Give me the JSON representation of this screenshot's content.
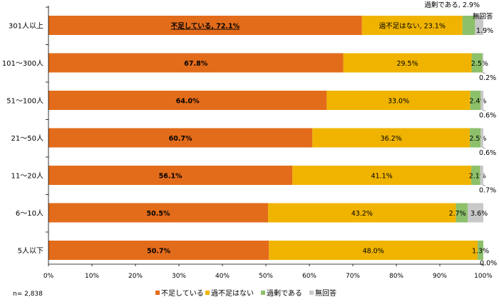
{
  "chart_data": {
    "type": "bar",
    "orientation": "horizontal",
    "stacked": true,
    "percent": true,
    "categories": [
      "301人以上",
      "101～300人",
      "51～100人",
      "21～50人",
      "11～20人",
      "6～10人",
      "5人以下"
    ],
    "series": [
      {
        "name": "不足している",
        "color": "#E36C1B",
        "values": [
          72.1,
          67.8,
          64.0,
          60.7,
          56.1,
          50.5,
          50.7
        ],
        "labels": [
          "不足している, 72.1%",
          "67.8%",
          "64.0%",
          "60.7%",
          "56.1%",
          "50.5%",
          "50.7%"
        ]
      },
      {
        "name": "過不足はない",
        "color": "#F0B400",
        "values": [
          23.1,
          29.5,
          33.0,
          36.2,
          41.1,
          43.2,
          48.0
        ],
        "labels": [
          "過不足はない, 23.1%",
          "29.5%",
          "33.0%",
          "36.2%",
          "41.1%",
          "43.2%",
          "48.0%"
        ]
      },
      {
        "name": "過剰である",
        "color": "#8DC06A",
        "values": [
          2.9,
          2.5,
          2.4,
          2.5,
          2.1,
          2.7,
          1.3
        ],
        "labels": [
          "過剰である, 2.9%",
          "2.5%",
          "2.4%",
          "2.5%",
          "2.1%",
          "2.7%",
          "1.3%"
        ]
      },
      {
        "name": "無回答",
        "color": "#C8C8C8",
        "values": [
          1.9,
          0.2,
          0.6,
          0.6,
          0.7,
          3.6,
          0.0
        ],
        "labels": [
          "無回答\n1.9%",
          "0.2%",
          "0.6%",
          "0.6%",
          "0.7%",
          "3.6%",
          "0.0%"
        ]
      }
    ],
    "xlim": [
      0,
      100
    ],
    "xticks": [
      "0%",
      "10%",
      "20%",
      "30%",
      "40%",
      "50%",
      "60%",
      "70%",
      "80%",
      "90%",
      "100%"
    ],
    "legend": "bottom",
    "grid": false,
    "note": "n= 2,838"
  }
}
